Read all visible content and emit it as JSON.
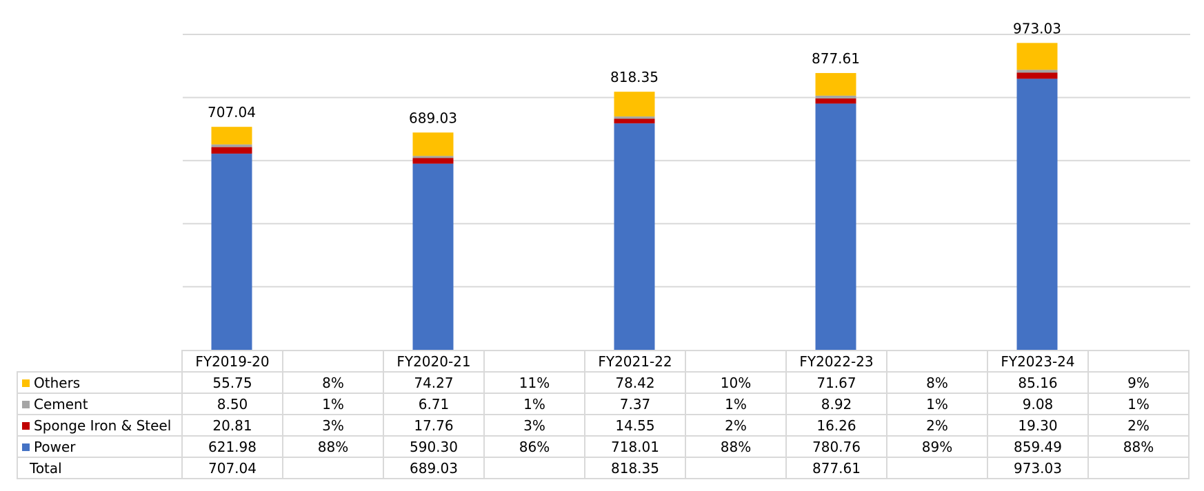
{
  "chart_data": {
    "type": "bar",
    "stacked": true,
    "categories": [
      "FY2019-20",
      "FY2020-21",
      "FY2021-22",
      "FY2022-23",
      "FY2023-24"
    ],
    "series": [
      {
        "name": "Power",
        "color": "#4472c4",
        "values": [
          621.98,
          590.3,
          718.01,
          780.76,
          859.49
        ],
        "value_labels": [
          "621.98",
          "590.30",
          "718.01",
          "780.76",
          "859.49"
        ],
        "share_labels": [
          "88%",
          "86%",
          "88%",
          "89%",
          "88%"
        ]
      },
      {
        "name": "Sponge Iron & Steel",
        "color": "#c00000",
        "values": [
          20.81,
          17.76,
          14.55,
          16.26,
          19.3
        ],
        "value_labels": [
          "20.81",
          "17.76",
          "14.55",
          "16.26",
          "19.30"
        ],
        "share_labels": [
          "3%",
          "3%",
          "2%",
          "2%",
          "2%"
        ]
      },
      {
        "name": "Cement",
        "color": "#a5a5a5",
        "values": [
          8.5,
          6.71,
          7.37,
          8.92,
          9.08
        ],
        "value_labels": [
          "8.50",
          "6.71",
          "7.37",
          "8.92",
          "9.08"
        ],
        "share_labels": [
          "1%",
          "1%",
          "1%",
          "1%",
          "1%"
        ]
      },
      {
        "name": "Others",
        "color": "#ffc000",
        "values": [
          55.75,
          74.27,
          78.42,
          71.67,
          85.16
        ],
        "value_labels": [
          "55.75",
          "74.27",
          "78.42",
          "71.67",
          "85.16"
        ],
        "share_labels": [
          "8%",
          "11%",
          "10%",
          "8%",
          "9%"
        ]
      }
    ],
    "totals": [
      707.04,
      689.03,
      818.35,
      877.61,
      973.03
    ],
    "total_labels": [
      "707.04",
      "689.03",
      "818.35",
      "877.61",
      "973.03"
    ],
    "total_row_label": "Total",
    "ylim": [
      0,
      1000
    ],
    "y_gridlines": [
      200,
      400,
      600,
      800,
      1000
    ],
    "grid": true,
    "y_tick_labels_shown": false,
    "legend_placement": "in-table-left",
    "gridline_color": "#d9d9d9"
  }
}
